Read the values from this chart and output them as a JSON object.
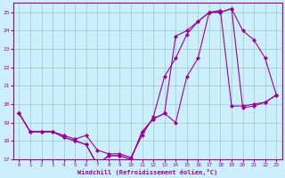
{
  "xlabel": "Windchill (Refroidissement éolien,°C)",
  "background_color": "#cceeff",
  "grid_color": "#99ccbb",
  "line_color": "#990099",
  "xlim": [
    -0.5,
    23.5
  ],
  "ylim": [
    17,
    25.5
  ],
  "yticks": [
    17,
    18,
    19,
    20,
    21,
    22,
    23,
    24,
    25
  ],
  "xticks": [
    0,
    1,
    2,
    3,
    4,
    5,
    6,
    7,
    8,
    9,
    10,
    11,
    12,
    13,
    14,
    15,
    16,
    17,
    18,
    19,
    20,
    21,
    22,
    23
  ],
  "line1_x": [
    0,
    1,
    2,
    3,
    4,
    5,
    6,
    7,
    8,
    9,
    10,
    11,
    12,
    13,
    14,
    15,
    16,
    17,
    18,
    19,
    20,
    21,
    22,
    23
  ],
  "line1_y": [
    19.5,
    18.5,
    18.5,
    18.5,
    18.2,
    18.0,
    17.8,
    16.7,
    17.2,
    17.2,
    17.0,
    18.5,
    19.2,
    19.5,
    19.0,
    21.5,
    22.5,
    25.0,
    25.0,
    25.2,
    24.0,
    23.5,
    22.5,
    20.5
  ],
  "line2_x": [
    0,
    1,
    2,
    3,
    4,
    5,
    6,
    7,
    8,
    9,
    10,
    11,
    12,
    13,
    14,
    15,
    16,
    17,
    18,
    19,
    20,
    21,
    22,
    23
  ],
  "line2_y": [
    19.5,
    18.5,
    18.5,
    18.5,
    18.2,
    18.0,
    17.8,
    16.7,
    17.2,
    17.2,
    17.0,
    18.5,
    19.2,
    19.5,
    23.7,
    24.0,
    24.5,
    25.0,
    25.0,
    25.2,
    19.8,
    19.9,
    20.1,
    20.5
  ],
  "line3_x": [
    0,
    1,
    2,
    3,
    4,
    5,
    6,
    7,
    8,
    9,
    10,
    11,
    12,
    13,
    14,
    15,
    16,
    17,
    18,
    19,
    20,
    21,
    22,
    23
  ],
  "line3_y": [
    19.5,
    18.5,
    18.5,
    18.5,
    18.3,
    18.1,
    18.3,
    17.5,
    17.3,
    17.3,
    17.1,
    18.3,
    19.3,
    21.5,
    22.5,
    23.8,
    24.5,
    25.0,
    25.1,
    19.9,
    19.9,
    20.0,
    20.1,
    20.5
  ]
}
